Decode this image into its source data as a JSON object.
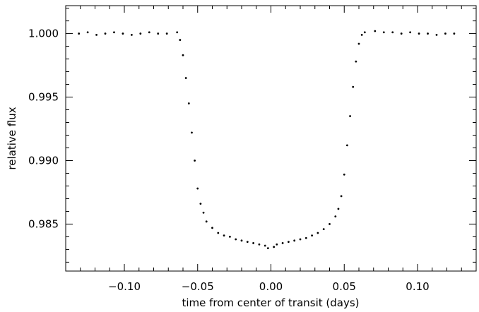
{
  "chart_data": {
    "type": "scatter",
    "title": "",
    "xlabel": "time from center of transit (days)",
    "ylabel": "relative flux",
    "xlim": [
      -0.14,
      0.14
    ],
    "ylim": [
      0.9813,
      1.0022
    ],
    "x_ticks": [
      -0.1,
      -0.05,
      0.0,
      0.05,
      0.1
    ],
    "x_tick_labels": [
      "−0.10",
      "−0.05",
      "0.00",
      "0.05",
      "0.10"
    ],
    "y_ticks": [
      0.985,
      0.99,
      0.995,
      1.0
    ],
    "y_tick_labels": [
      "0.985",
      "0.990",
      "0.995",
      "1.000"
    ],
    "grid": false,
    "legend": "none",
    "series": [
      {
        "x": [
          -0.131,
          -0.125,
          -0.119,
          -0.113,
          -0.107,
          -0.101,
          -0.095,
          -0.089,
          -0.083,
          -0.077,
          -0.071,
          -0.064,
          -0.062,
          -0.06,
          -0.058,
          -0.056,
          -0.054,
          -0.052,
          -0.05,
          -0.048,
          -0.046,
          -0.044,
          -0.04,
          -0.036,
          -0.032,
          -0.028,
          -0.024,
          -0.02,
          -0.016,
          -0.012,
          -0.008,
          -0.004,
          -0.002,
          0.002,
          0.004,
          0.008,
          0.012,
          0.016,
          0.02,
          0.024,
          0.028,
          0.032,
          0.036,
          0.04,
          0.044,
          0.046,
          0.048,
          0.05,
          0.052,
          0.054,
          0.056,
          0.058,
          0.06,
          0.062,
          0.064,
          0.071,
          0.077,
          0.083,
          0.089,
          0.095,
          0.101,
          0.107,
          0.113,
          0.119,
          0.125
        ],
        "y": [
          1.0,
          1.0001,
          0.9999,
          1.0,
          1.0001,
          1.0,
          0.9999,
          1.0,
          1.0001,
          1.0,
          1.0,
          1.0001,
          0.9995,
          0.9983,
          0.9965,
          0.9945,
          0.9922,
          0.99,
          0.9878,
          0.9866,
          0.9859,
          0.9852,
          0.9847,
          0.9843,
          0.9841,
          0.984,
          0.9838,
          0.9837,
          0.9836,
          0.9835,
          0.9834,
          0.9833,
          0.9831,
          0.9832,
          0.9834,
          0.9835,
          0.9836,
          0.9837,
          0.9838,
          0.9839,
          0.9841,
          0.9843,
          0.9846,
          0.985,
          0.9856,
          0.9862,
          0.9872,
          0.9889,
          0.9912,
          0.9935,
          0.9958,
          0.9978,
          0.9992,
          0.9999,
          1.0001,
          1.0002,
          1.0001,
          1.0001,
          1.0,
          1.0001,
          1.0,
          1.0,
          0.9999,
          1.0,
          1.0
        ]
      }
    ],
    "colors": {
      "points": "#000000",
      "axes": "#000000",
      "background": "#ffffff"
    }
  }
}
